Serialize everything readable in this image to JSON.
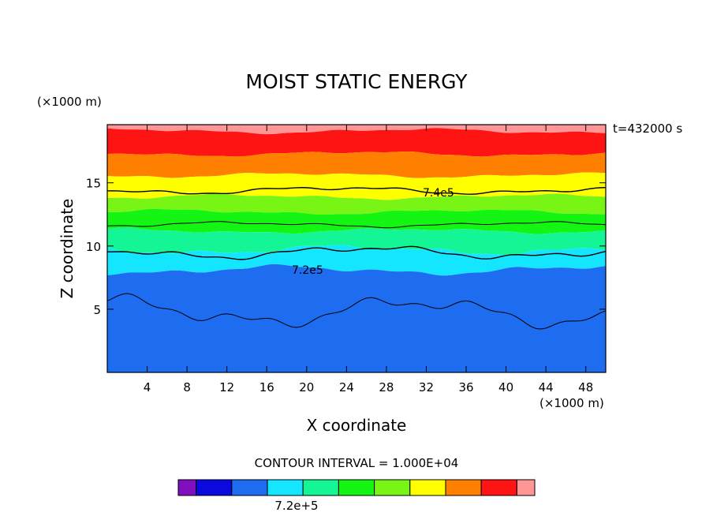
{
  "chart_data": {
    "type": "heatmap",
    "title": "MOIST STATIC ENERGY",
    "time_label": "t=432000 s",
    "xlabel": "X coordinate",
    "ylabel": "Z coordinate",
    "x_unit": "(×1000 m)",
    "y_unit": "(×1000 m)",
    "xlim": [
      0,
      50
    ],
    "ylim": [
      0,
      19.6
    ],
    "x_ticks": [
      4,
      8,
      12,
      16,
      20,
      24,
      28,
      32,
      36,
      40,
      44,
      48
    ],
    "y_ticks": [
      5,
      10,
      15
    ],
    "contour_interval_text": "CONTOUR INTERVAL = 1.000E+04",
    "contour_labels": [
      "7.4e5",
      "7.2e5"
    ],
    "colorbar": {
      "label": "7.2e+5",
      "colors": [
        "#7f0fbf",
        "#0a0ae0",
        "#1e6cf0",
        "#14e6ff",
        "#14f596",
        "#14f514",
        "#78f514",
        "#ffff00",
        "#ff7f00",
        "#ff1414",
        "#ff9696"
      ]
    },
    "bands": [
      {
        "color": "#ff9696",
        "top": 19.6,
        "bottom": 19.1
      },
      {
        "color": "#ff1414",
        "top": 19.1,
        "bottom": 17.3
      },
      {
        "color": "#ff7f00",
        "top": 17.3,
        "bottom": 15.6
      },
      {
        "color": "#ffff00",
        "top": 15.6,
        "bottom": 13.9
      },
      {
        "color": "#78f514",
        "top": 13.9,
        "bottom": 12.7
      },
      {
        "color": "#14f514",
        "top": 12.7,
        "bottom": 11.2
      },
      {
        "color": "#14f596",
        "top": 11.2,
        "bottom": 9.7
      },
      {
        "color": "#14e6ff",
        "top": 9.7,
        "bottom": 8.1
      },
      {
        "color": "#1e6cf0",
        "top": 8.1,
        "bottom": 0
      }
    ]
  }
}
